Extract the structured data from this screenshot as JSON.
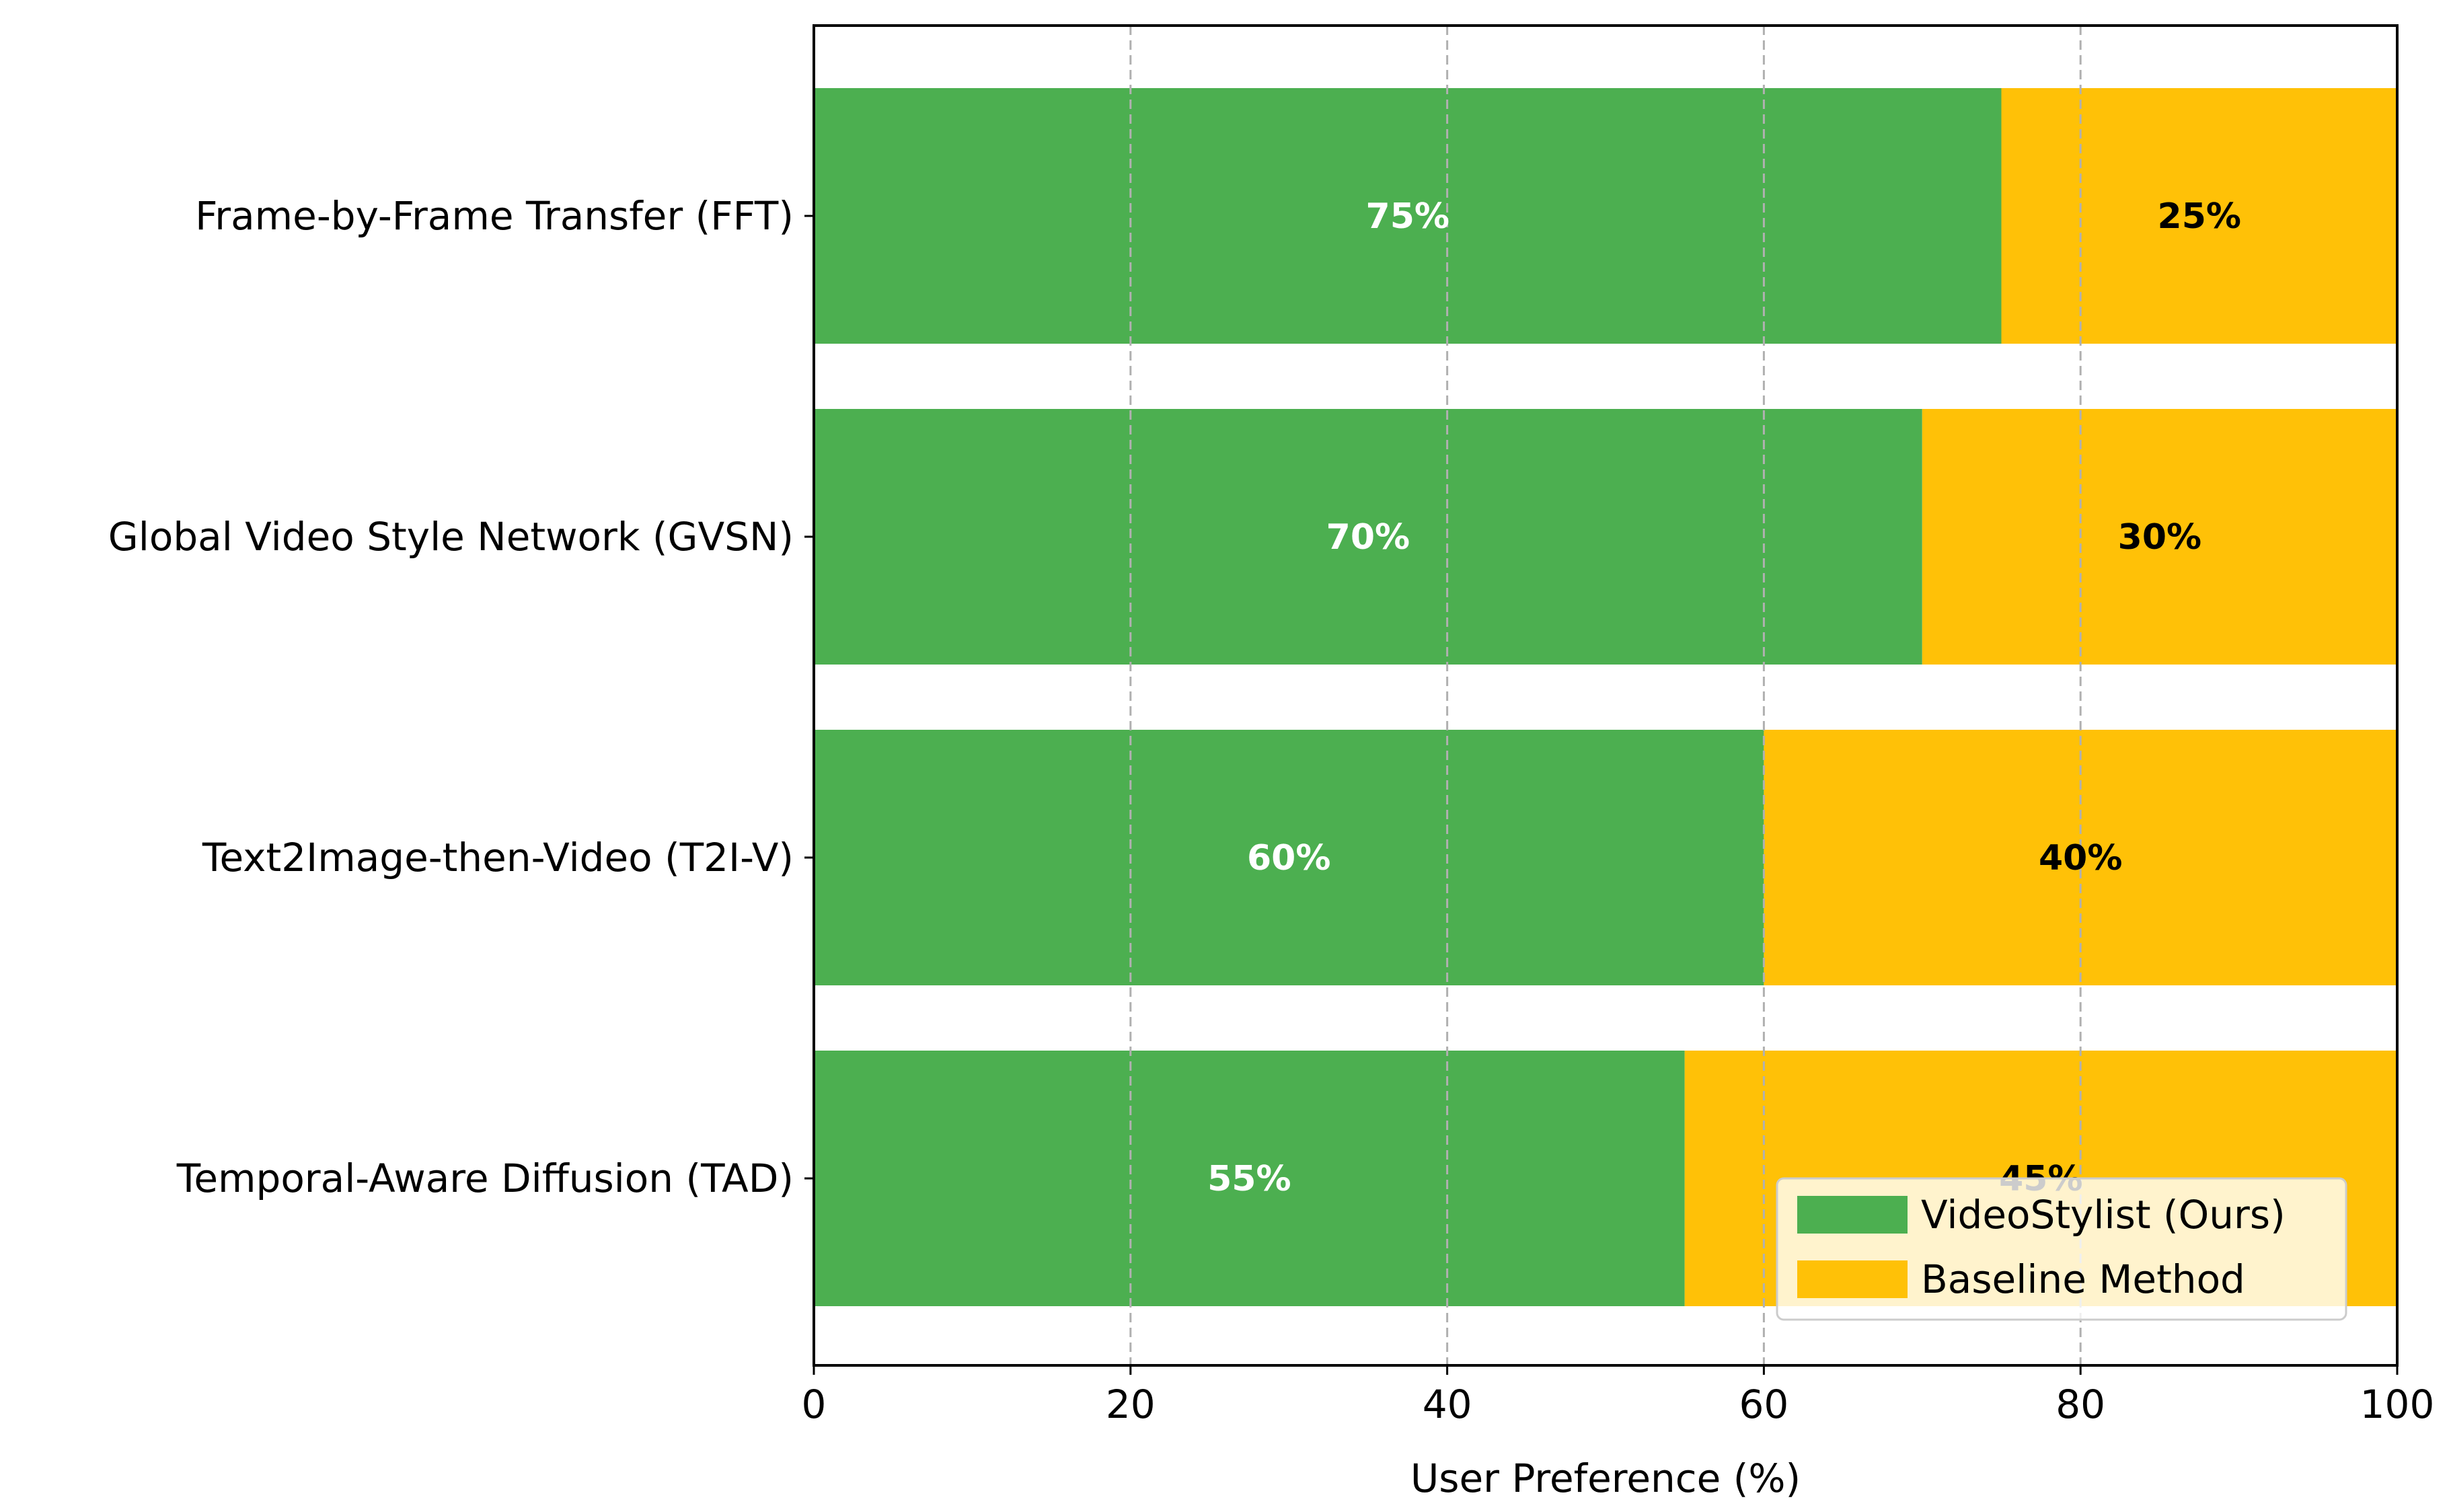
{
  "chart_data": {
    "type": "bar",
    "orientation": "horizontal",
    "stacked": true,
    "categories": [
      "Frame-by-Frame Transfer (FFT)",
      "Global Video Style Network (GVSN)",
      "Text2Image-then-Video (T2I-V)",
      "Temporal-Aware Diffusion (TAD)"
    ],
    "series": [
      {
        "name": "VideoStylist (Ours)",
        "values": [
          75,
          70,
          60,
          55
        ],
        "color": "#4caf50",
        "label_color": "#ffffff"
      },
      {
        "name": "Baseline Method",
        "values": [
          25,
          30,
          40,
          45
        ],
        "color": "#ffc107",
        "label_color": "#000000"
      }
    ],
    "data_labels": [
      [
        "75%",
        "70%",
        "60%",
        "55%"
      ],
      [
        "25%",
        "30%",
        "40%",
        "45%"
      ]
    ],
    "title": "",
    "xlabel": "User Preference (%)",
    "ylabel": "",
    "xlim": [
      0,
      100
    ],
    "xticks": [
      "0",
      "20",
      "40",
      "60",
      "80",
      "100"
    ],
    "grid": "x-dashed",
    "legend_position": "lower-right"
  }
}
